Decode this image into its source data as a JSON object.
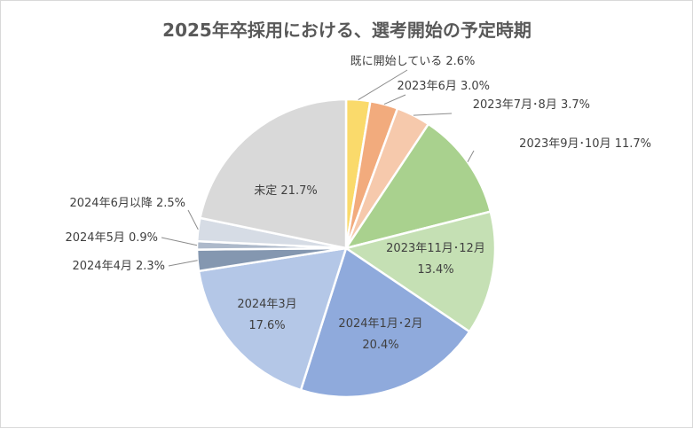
{
  "chart_data": {
    "type": "pie",
    "title": "2025年卒採用における、選考開始の予定時期",
    "slices": [
      {
        "label": "既に開始している",
        "value": 2.6,
        "value_text": "2.6%",
        "color": "#FADA6B"
      },
      {
        "label": "2023年6月",
        "value": 3.0,
        "value_text": "3.0%",
        "color": "#F2AB7D"
      },
      {
        "label": "2023年7月･8月",
        "value": 3.7,
        "value_text": "3.7%",
        "color": "#F6C9AC"
      },
      {
        "label": "2023年9月･10月",
        "value": 11.7,
        "value_text": "11.7%",
        "color": "#A9D18E"
      },
      {
        "label": "2023年11月･12月",
        "value": 13.4,
        "value_text": "13.4%",
        "color": "#C5E0B4"
      },
      {
        "label": "2024年1月･2月",
        "value": 20.4,
        "value_text": "20.4%",
        "color": "#8FAADC"
      },
      {
        "label": "2024年3月",
        "value": 17.6,
        "value_text": "17.6%",
        "color": "#B4C7E7"
      },
      {
        "label": "2024年4月",
        "value": 2.3,
        "value_text": "2.3%",
        "color": "#8497B0"
      },
      {
        "label": "2024年5月",
        "value": 0.9,
        "value_text": "0.9%",
        "color": "#ADB9CA"
      },
      {
        "label": "2024年6月以降",
        "value": 2.5,
        "value_text": "2.5%",
        "color": "#D6DCE5"
      },
      {
        "label": "未定",
        "value": 21.7,
        "value_text": "21.7%",
        "color": "#D9D9D9"
      }
    ],
    "start_angle": "12 o'clock",
    "direction": "clockwise",
    "legend": "none (data labels)"
  }
}
